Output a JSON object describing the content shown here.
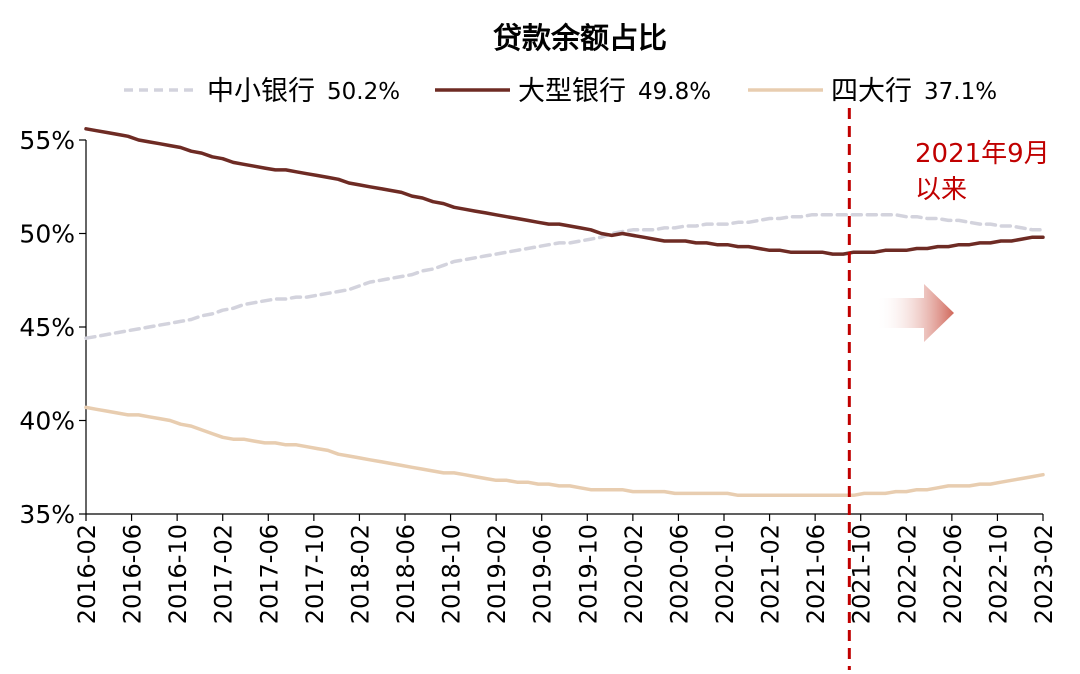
{
  "chart_data": {
    "type": "line",
    "title": "贷款余额占比",
    "xlabel": "",
    "ylabel": "",
    "ylim": [
      35,
      55
    ],
    "yticks": [
      "55%",
      "50%",
      "45%",
      "40%",
      "35%"
    ],
    "ytick_values": [
      55,
      50,
      45,
      40,
      35
    ],
    "x_start": "2016-02",
    "x_end": "2023-02",
    "xticks": [
      "2016-02",
      "2016-06",
      "2016-10",
      "2017-02",
      "2017-06",
      "2017-10",
      "2018-02",
      "2018-06",
      "2018-10",
      "2019-02",
      "2019-06",
      "2019-10",
      "2020-02",
      "2020-06",
      "2020-10",
      "2021-02",
      "2021-06",
      "2021-10",
      "2022-02",
      "2022-06",
      "2022-10",
      "2023-02"
    ],
    "legend_position": "top",
    "series": [
      {
        "name": "中小银行",
        "legend_value": "50.2%",
        "color": "#d3d3dd",
        "style": "dashed",
        "values": [
          44.4,
          44.5,
          44.6,
          44.7,
          44.8,
          44.9,
          45.0,
          45.1,
          45.2,
          45.3,
          45.4,
          45.6,
          45.7,
          45.9,
          46.0,
          46.2,
          46.3,
          46.4,
          46.5,
          46.5,
          46.6,
          46.6,
          46.7,
          46.8,
          46.9,
          47.0,
          47.2,
          47.4,
          47.5,
          47.6,
          47.7,
          47.8,
          48.0,
          48.1,
          48.3,
          48.5,
          48.6,
          48.7,
          48.8,
          48.9,
          49.0,
          49.1,
          49.2,
          49.3,
          49.4,
          49.5,
          49.5,
          49.6,
          49.7,
          49.8,
          50.0,
          50.1,
          50.2,
          50.2,
          50.2,
          50.3,
          50.3,
          50.4,
          50.4,
          50.5,
          50.5,
          50.5,
          50.6,
          50.6,
          50.7,
          50.8,
          50.8,
          50.9,
          50.9,
          51.0,
          51.0,
          51.0,
          51.0,
          51.0,
          51.0,
          51.0,
          51.0,
          51.0,
          50.9,
          50.9,
          50.8,
          50.8,
          50.7,
          50.7,
          50.6,
          50.5,
          50.5,
          50.4,
          50.4,
          50.3,
          50.2,
          50.2
        ]
      },
      {
        "name": "大型银行",
        "legend_value": "49.8%",
        "color": "#6e2b24",
        "style": "solid",
        "values": [
          55.6,
          55.5,
          55.4,
          55.3,
          55.2,
          55.0,
          54.9,
          54.8,
          54.7,
          54.6,
          54.4,
          54.3,
          54.1,
          54.0,
          53.8,
          53.7,
          53.6,
          53.5,
          53.4,
          53.4,
          53.3,
          53.2,
          53.1,
          53.0,
          52.9,
          52.7,
          52.6,
          52.5,
          52.4,
          52.3,
          52.2,
          52.0,
          51.9,
          51.7,
          51.6,
          51.4,
          51.3,
          51.2,
          51.1,
          51.0,
          50.9,
          50.8,
          50.7,
          50.6,
          50.5,
          50.5,
          50.4,
          50.3,
          50.2,
          50.0,
          49.9,
          50.0,
          49.9,
          49.8,
          49.7,
          49.6,
          49.6,
          49.6,
          49.5,
          49.5,
          49.4,
          49.4,
          49.3,
          49.3,
          49.2,
          49.1,
          49.1,
          49.0,
          49.0,
          49.0,
          49.0,
          48.9,
          48.9,
          49.0,
          49.0,
          49.0,
          49.1,
          49.1,
          49.1,
          49.2,
          49.2,
          49.3,
          49.3,
          49.4,
          49.4,
          49.5,
          49.5,
          49.6,
          49.6,
          49.7,
          49.8,
          49.8
        ]
      },
      {
        "name": "四大行",
        "legend_value": "37.1%",
        "color": "#e8cdb0",
        "style": "solid",
        "values": [
          40.7,
          40.6,
          40.5,
          40.4,
          40.3,
          40.3,
          40.2,
          40.1,
          40.0,
          39.8,
          39.7,
          39.5,
          39.3,
          39.1,
          39.0,
          39.0,
          38.9,
          38.8,
          38.8,
          38.7,
          38.7,
          38.6,
          38.5,
          38.4,
          38.2,
          38.1,
          38.0,
          37.9,
          37.8,
          37.7,
          37.6,
          37.5,
          37.4,
          37.3,
          37.2,
          37.2,
          37.1,
          37.0,
          36.9,
          36.8,
          36.8,
          36.7,
          36.7,
          36.6,
          36.6,
          36.5,
          36.5,
          36.4,
          36.3,
          36.3,
          36.3,
          36.3,
          36.2,
          36.2,
          36.2,
          36.2,
          36.1,
          36.1,
          36.1,
          36.1,
          36.1,
          36.1,
          36.0,
          36.0,
          36.0,
          36.0,
          36.0,
          36.0,
          36.0,
          36.0,
          36.0,
          36.0,
          36.0,
          36.0,
          36.1,
          36.1,
          36.1,
          36.2,
          36.2,
          36.3,
          36.3,
          36.4,
          36.5,
          36.5,
          36.5,
          36.6,
          36.6,
          36.7,
          36.8,
          36.9,
          37.0,
          37.1
        ]
      }
    ],
    "vline": {
      "x": "2021-09",
      "color": "#c00000",
      "style": "dashed"
    },
    "annotation": {
      "lines": [
        "2021年9月",
        "以来"
      ],
      "color": "#c00000"
    },
    "arrow_color": "#d0675a",
    "grid": false
  }
}
